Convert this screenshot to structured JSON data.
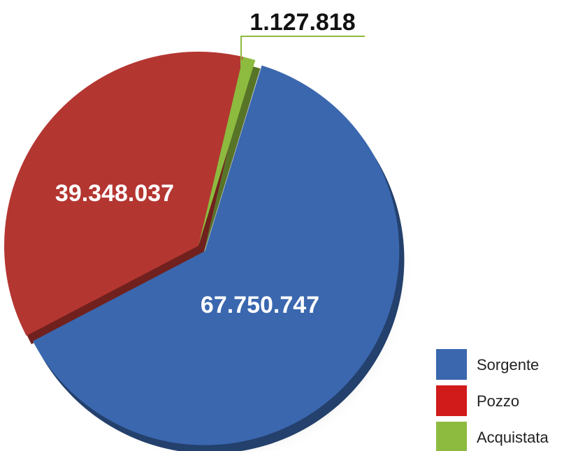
{
  "chart_data": {
    "type": "pie",
    "categories": [
      "Sorgente",
      "Pozzo",
      "Acquistata"
    ],
    "values": [
      67750747,
      39348037,
      1127818
    ],
    "value_labels": [
      "67.750.747",
      "39.348.037",
      "1.127.818"
    ],
    "colors": [
      "#3A67AE",
      "#B43631",
      "#8DBB3F"
    ],
    "title": "",
    "legend_position": "bottom-right"
  },
  "legend": {
    "items": [
      {
        "label": "Sorgente",
        "color": "#3A67AE"
      },
      {
        "label": "Pozzo",
        "color": "#D11B1B"
      },
      {
        "label": "Acquistata",
        "color": "#8DBB3F"
      }
    ]
  }
}
